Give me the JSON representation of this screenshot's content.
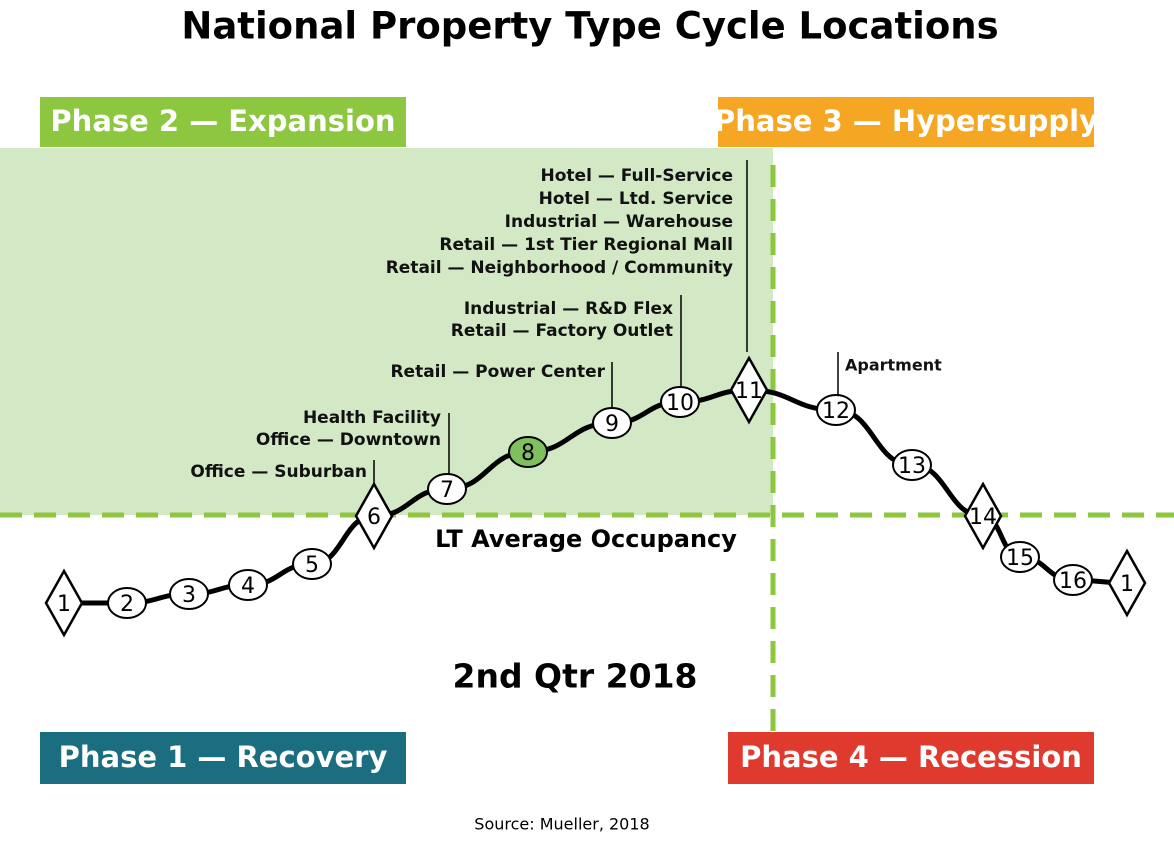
{
  "title": "National Property Type Cycle Locations",
  "phases": [
    "Phase 2 — Expansion",
    "Phase 3 — Hypersupply",
    "Phase 1 — Recovery",
    "Phase 4 — Recession"
  ],
  "nodes": [
    "1",
    "2",
    "3",
    "4",
    "5",
    "6",
    "7",
    "8",
    "9",
    "10",
    "11",
    "12",
    "13",
    "14",
    "15",
    "16",
    "1"
  ],
  "annotations": [
    [
      "Office — Suburban"
    ],
    [
      "Health Facility",
      "Office — Downtown"
    ],
    [
      "Retail — Power Center"
    ],
    [
      "Industrial — R&D Flex",
      "Retail — Factory Outlet"
    ],
    [
      "Hotel — Full-Service",
      "Hotel — Ltd. Service",
      "Industrial — Warehouse",
      "Retail — 1st Tier Regional Mall",
      "Retail — Neighborhood / Community"
    ],
    [
      "Apartment"
    ]
  ],
  "reference_line": "LT Average Occupancy",
  "period": "2nd Qtr 2018",
  "source": "Source: Mueller, 2018"
}
